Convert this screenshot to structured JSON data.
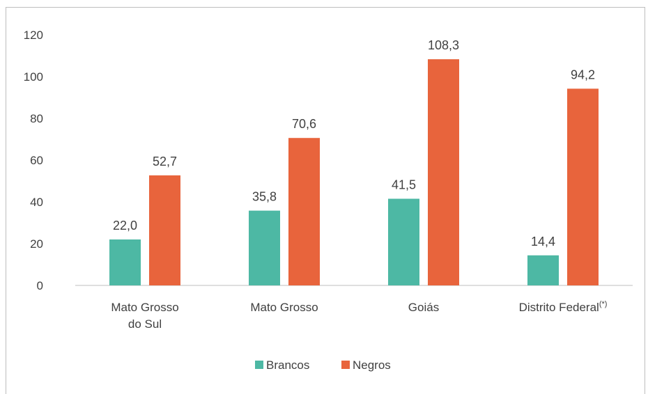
{
  "chart_data": {
    "type": "bar",
    "categories": [
      [
        "Mato Grosso",
        "do Sul"
      ],
      [
        "Mato Grosso"
      ],
      [
        "Goiás"
      ],
      [
        "Distrito Federal"
      ]
    ],
    "category_superscripts": [
      "",
      "",
      "",
      "(*)"
    ],
    "series": [
      {
        "name": "Brancos",
        "values": [
          22.0,
          35.8,
          41.5,
          14.4
        ],
        "labels": [
          "22,0",
          "35,8",
          "41,5",
          "14,4"
        ],
        "color": "#4db8a4"
      },
      {
        "name": "Negros",
        "values": [
          52.7,
          70.6,
          108.3,
          94.2
        ],
        "labels": [
          "52,7",
          "70,6",
          "108,3",
          "94,2"
        ],
        "color": "#e8643c"
      }
    ],
    "ylim": [
      0,
      120
    ],
    "yticks": [
      0,
      20,
      40,
      60,
      80,
      100,
      120
    ],
    "legend_position": "bottom-center",
    "grid": false
  }
}
